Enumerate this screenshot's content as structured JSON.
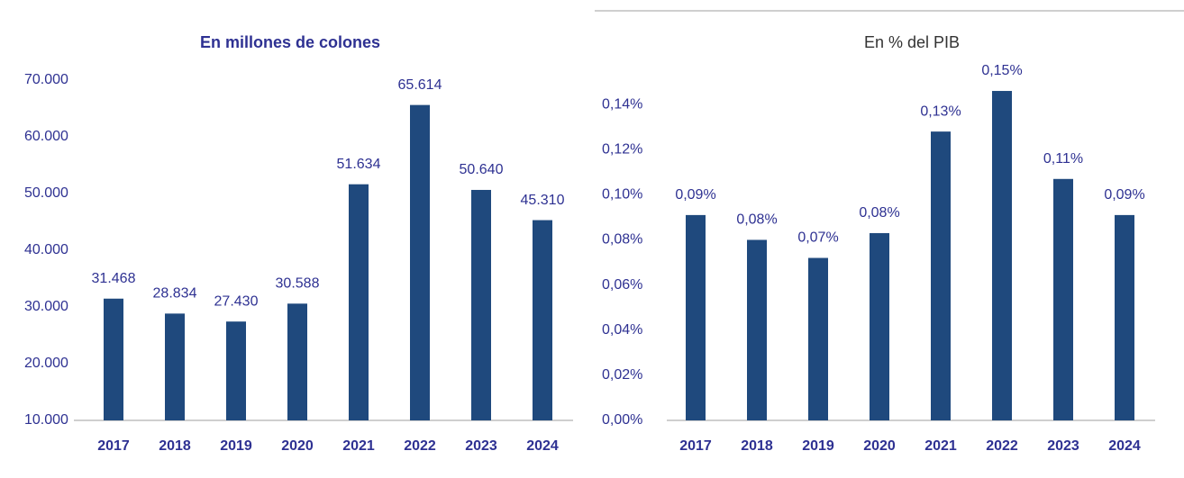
{
  "chart_data": [
    {
      "type": "bar",
      "title": "En millones de colones",
      "categories": [
        "2017",
        "2018",
        "2019",
        "2020",
        "2021",
        "2022",
        "2023",
        "2024"
      ],
      "values": [
        31468,
        28834,
        27430,
        30588,
        51634,
        65614,
        50640,
        45310
      ],
      "value_labels": [
        "31.468",
        "28.834",
        "27.430",
        "30.588",
        "51.634",
        "65.614",
        "50.640",
        "45.310"
      ],
      "color": "#1f497d",
      "ylim": [
        10000,
        70000
      ],
      "yticks": [
        {
          "value": 10000,
          "label": "10.000"
        },
        {
          "value": 20000,
          "label": "20.000"
        },
        {
          "value": 30000,
          "label": "30.000"
        },
        {
          "value": 40000,
          "label": "40.000"
        },
        {
          "value": 50000,
          "label": "50.000"
        },
        {
          "value": 60000,
          "label": "60.000"
        },
        {
          "value": 70000,
          "label": "70.000"
        }
      ],
      "grid": false
    },
    {
      "type": "bar",
      "title": "En % del PIB",
      "categories": [
        "2017",
        "2018",
        "2019",
        "2020",
        "2021",
        "2022",
        "2023",
        "2024"
      ],
      "values": [
        0.091,
        0.08,
        0.072,
        0.083,
        0.128,
        0.146,
        0.107,
        0.091
      ],
      "value_labels": [
        "0,09%",
        "0,08%",
        "0,07%",
        "0,08%",
        "0,13%",
        "0,15%",
        "0,11%",
        "0,09%"
      ],
      "color": "#1f497d",
      "ylim": [
        0,
        0.15
      ],
      "yticks": [
        {
          "value": 0,
          "label": "0,00%"
        },
        {
          "value": 0.02,
          "label": "0,02%"
        },
        {
          "value": 0.04,
          "label": "0,04%"
        },
        {
          "value": 0.06,
          "label": "0,06%"
        },
        {
          "value": 0.08,
          "label": "0,08%"
        },
        {
          "value": 0.1,
          "label": "0,10%"
        },
        {
          "value": 0.12,
          "label": "0,12%"
        },
        {
          "value": 0.14,
          "label": "0,14%"
        }
      ],
      "grid": false
    }
  ]
}
